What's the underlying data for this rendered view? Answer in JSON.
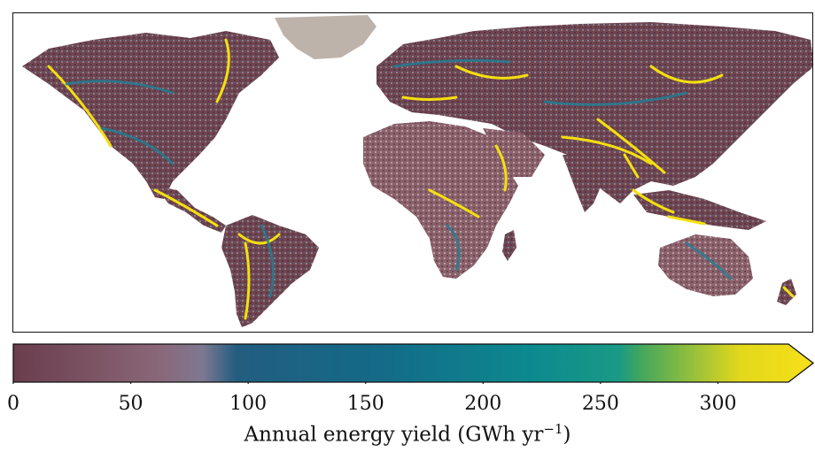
{
  "map": {
    "colors": {
      "land_low": "#6e4652",
      "land_mid": "#a88a8f",
      "ice": "#bdb3aa",
      "teal": "#2a7a8f",
      "yellow": "#f4e00e",
      "green": "#3b9f6e"
    },
    "legend_icons": [
      "world-map"
    ]
  },
  "colorbar": {
    "min": 0,
    "max": 330,
    "extend": "max",
    "ticks": [
      "0",
      "50",
      "100",
      "150",
      "200",
      "250",
      "300"
    ],
    "tick_values": [
      0,
      50,
      100,
      150,
      200,
      250,
      300
    ],
    "label_main": "Annual energy yield (GWh yr",
    "label_exp": "−1",
    "label_close": ")",
    "stops": [
      {
        "v": 0,
        "c": "#6a3d4c"
      },
      {
        "v": 60,
        "c": "#8a6778"
      },
      {
        "v": 78,
        "c": "#7e7891"
      },
      {
        "v": 92,
        "c": "#225d80"
      },
      {
        "v": 150,
        "c": "#146a88"
      },
      {
        "v": 215,
        "c": "#0c8a8f"
      },
      {
        "v": 250,
        "c": "#1a9a85"
      },
      {
        "v": 258,
        "c": "#3fa55f"
      },
      {
        "v": 300,
        "c": "#e3d81b"
      },
      {
        "v": 330,
        "c": "#f7e01a"
      }
    ]
  }
}
